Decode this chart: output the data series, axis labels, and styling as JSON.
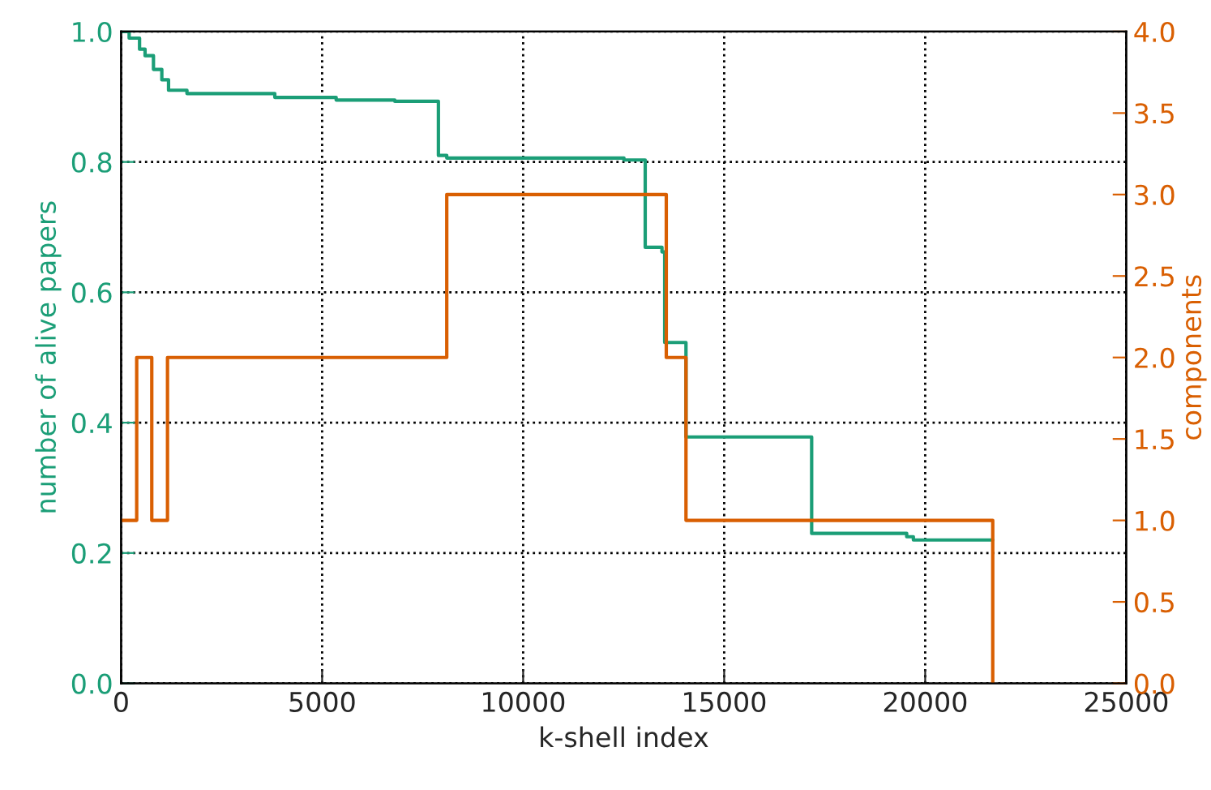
{
  "chart_data": {
    "type": "step",
    "xlabel": "k-shell index",
    "ylabel": "number of alive papers",
    "y2label": "components",
    "series": [
      {
        "color": "#1b9e77",
        "x": [
          0,
          200,
          459,
          596,
          805,
          1013,
          1180,
          1638,
          3823,
          5349,
          6808,
          7892,
          8100,
          12507,
          13036,
          13453,
          13520,
          14050,
          17176,
          19540,
          19706,
          21680
        ],
        "values": [
          1.0,
          0.99,
          0.973,
          0.963,
          0.942,
          0.926,
          0.91,
          0.905,
          0.899,
          0.895,
          0.893,
          0.81,
          0.806,
          0.803,
          0.669,
          0.662,
          0.523,
          0.378,
          0.23,
          0.225,
          0.22,
          0.22
        ]
      },
      {
        "color": "#d95f02",
        "axis": "y2",
        "x": [
          0,
          388,
          763,
          1154,
          8100,
          13560,
          14050,
          21680
        ],
        "values": [
          1,
          2,
          1,
          2,
          3,
          2,
          1,
          0
        ]
      }
    ],
    "xlim": [
      0,
      25000
    ],
    "xticks": [
      0,
      5000,
      10000,
      15000,
      20000,
      25000
    ],
    "ylim": [
      0,
      1.0
    ],
    "yticks": [
      {
        "value": 0,
        "label": "0.0"
      },
      {
        "value": 0.2,
        "label": "0.2"
      },
      {
        "value": 0.4,
        "label": "0.4"
      },
      {
        "value": 0.6,
        "label": "0.6"
      },
      {
        "value": 0.8,
        "label": "0.8"
      },
      {
        "value": 1.0,
        "label": "1.0"
      }
    ],
    "y2lim": [
      0,
      4.0
    ],
    "y2ticks": [
      {
        "value": 0,
        "label": "0.0"
      },
      {
        "value": 0.5,
        "label": "0.5"
      },
      {
        "value": 1,
        "label": "1.0"
      },
      {
        "value": 1.5,
        "label": "1.5"
      },
      {
        "value": 2,
        "label": "2.0"
      },
      {
        "value": 2.5,
        "label": "2.5"
      },
      {
        "value": 3,
        "label": "3.0"
      },
      {
        "value": 3.5,
        "label": "3.5"
      },
      {
        "value": 4,
        "label": "4.0"
      }
    ],
    "grid": true
  }
}
